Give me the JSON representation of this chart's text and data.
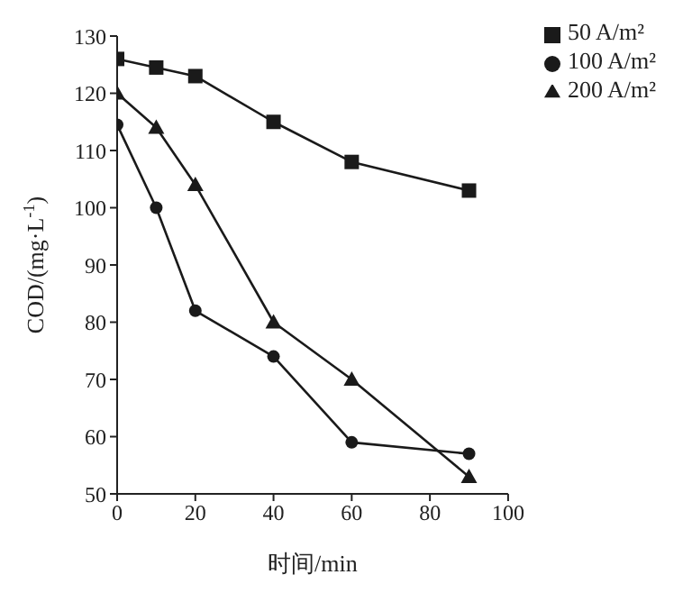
{
  "chart_data": {
    "type": "line",
    "xlabel": "时间/min",
    "ylabel": "COD/(mg·L$^{-1}$)",
    "x": [
      0,
      10,
      20,
      40,
      60,
      90
    ],
    "series": [
      {
        "name": "50 A/m²",
        "color": "#1a1a1a",
        "marker": "square",
        "values": [
          126,
          124.5,
          123,
          115,
          108,
          103
        ]
      },
      {
        "name": "100 A/m²",
        "color": "#1a1a1a",
        "marker": "circle",
        "values": [
          114.5,
          100,
          82,
          74,
          59,
          57
        ]
      },
      {
        "name": "200 A/m²",
        "color": "#1a1a1a",
        "marker": "triangle",
        "values": [
          120,
          114,
          104,
          80,
          70,
          53
        ]
      }
    ],
    "xlim": [
      0,
      100
    ],
    "xticks": [
      0,
      20,
      40,
      60,
      80,
      100
    ],
    "ylim": [
      50,
      130
    ],
    "yticks": [
      50,
      60,
      70,
      80,
      90,
      100,
      110,
      120,
      130
    ],
    "grid": false,
    "legend": "top right"
  }
}
